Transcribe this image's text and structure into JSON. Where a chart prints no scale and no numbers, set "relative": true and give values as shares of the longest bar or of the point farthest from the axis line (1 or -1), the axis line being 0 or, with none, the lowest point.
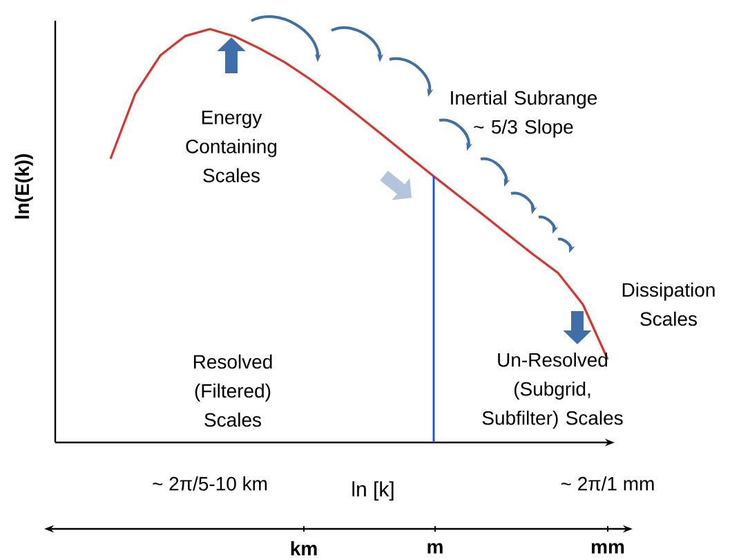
{
  "chart_data": {
    "type": "line",
    "relative": true,
    "xlabel": "ln [k]",
    "ylabel": "ln(E(k))",
    "categories": [
      null,
      null,
      null,
      null,
      "~ 2π/5-10 km",
      null,
      null,
      null,
      null,
      null,
      null,
      null,
      null,
      null,
      null,
      null,
      null,
      null,
      null,
      null,
      "~ 2π/1 mm"
    ],
    "series": [
      {
        "color": "#e0302a",
        "values": [
          0.686,
          0.844,
          0.936,
          0.983,
          1,
          0.982,
          0.953,
          0.92,
          0.88,
          0.836,
          0.789,
          0.741,
          0.692,
          0.644,
          0.597,
          0.55,
          0.502,
          0.455,
          0.41,
          0.334,
          0.201
        ]
      }
    ],
    "tick_labels": "x",
    "annotations": [
      "Energy Containing Scales",
      "Inertial Subrange ~ 5/3 Slope",
      "Dissipation Scales",
      "Resolved (Filtered) Scales",
      "Un-Resolved (Subgrid, Subfilter) Scales",
      "km",
      "m",
      "mm"
    ]
  }
}
